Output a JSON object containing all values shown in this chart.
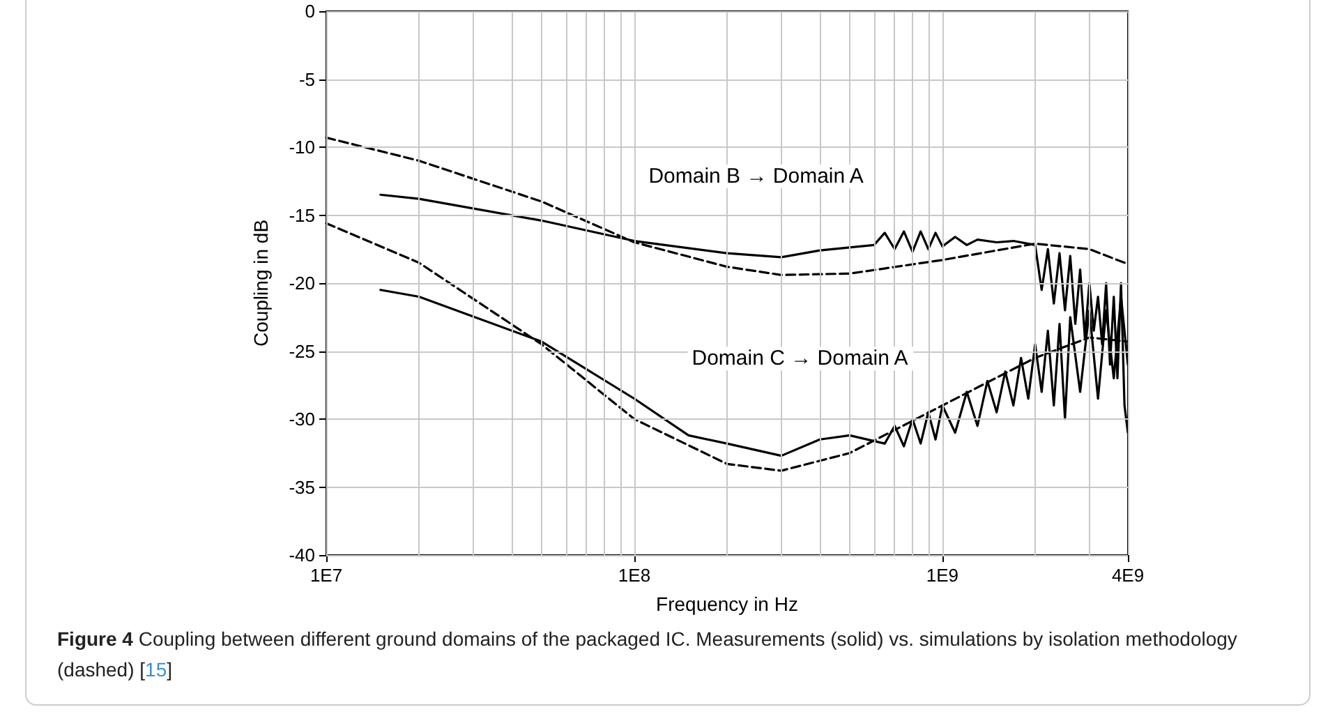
{
  "chart_data": {
    "type": "line",
    "xlabel": "Frequency in Hz",
    "ylabel": "Coupling in dB",
    "log": "x",
    "grid": true,
    "marker": "none",
    "xlim": [
      10000000,
      4000000000
    ],
    "xticks": [
      {
        "value": 10000000,
        "label": "1E7"
      },
      {
        "value": 20000000,
        "label": null
      },
      {
        "value": 30000000,
        "label": null
      },
      {
        "value": 40000000,
        "label": null
      },
      {
        "value": 50000000,
        "label": null
      },
      {
        "value": 60000000,
        "label": null
      },
      {
        "value": 70000000,
        "label": null
      },
      {
        "value": 80000000,
        "label": null
      },
      {
        "value": 90000000,
        "label": null
      },
      {
        "value": 100000000,
        "label": "1E8"
      },
      {
        "value": 200000000,
        "label": null
      },
      {
        "value": 300000000,
        "label": null
      },
      {
        "value": 400000000,
        "label": null
      },
      {
        "value": 500000000,
        "label": null
      },
      {
        "value": 600000000,
        "label": null
      },
      {
        "value": 700000000,
        "label": null
      },
      {
        "value": 800000000,
        "label": null
      },
      {
        "value": 900000000,
        "label": null
      },
      {
        "value": 1000000000,
        "label": "1E9"
      },
      {
        "value": 2000000000,
        "label": null
      },
      {
        "value": 3000000000,
        "label": null
      },
      {
        "value": 4000000000,
        "label": "4E9"
      }
    ],
    "ylim": [
      -40,
      0
    ],
    "yticks": [
      -40,
      -35,
      -30,
      -25,
      -20,
      -15,
      -10,
      -5,
      0
    ],
    "series": [
      {
        "color": "#000000",
        "line_style": "dashed",
        "x": [
          10000000,
          20000000,
          50000000,
          100000000,
          200000000,
          300000000,
          500000000,
          1000000000,
          2000000000,
          3000000000,
          4000000000
        ],
        "values": [
          -9.3,
          -11,
          -14,
          -17,
          -18.8,
          -19.4,
          -19.3,
          -18.3,
          -17.1,
          -17.5,
          -18.6
        ]
      },
      {
        "color": "#000000",
        "line_style": "solid",
        "x": [
          15000000,
          20000000,
          50000000,
          100000000,
          200000000,
          300000000,
          400000000,
          600000000,
          650000000,
          700000000,
          750000000,
          800000000,
          850000000,
          900000000,
          950000000,
          1000000000,
          1100000000,
          1200000000,
          1300000000,
          1500000000,
          1700000000,
          2000000000,
          2100000000,
          2200000000,
          2300000000,
          2400000000,
          2500000000,
          2600000000,
          2700000000,
          2800000000,
          2900000000,
          3000000000,
          3100000000,
          3200000000,
          3300000000,
          3400000000,
          3500000000,
          3600000000,
          3700000000,
          3800000000,
          3900000000,
          4000000000
        ],
        "values": [
          -13.5,
          -13.8,
          -15.4,
          -16.9,
          -17.8,
          -18.1,
          -17.6,
          -17.2,
          -16.3,
          -17.5,
          -16.2,
          -17.7,
          -16.2,
          -17.5,
          -16.3,
          -17.3,
          -16.6,
          -17.2,
          -16.8,
          -17,
          -16.9,
          -17.2,
          -20.5,
          -17.5,
          -21.5,
          -17.8,
          -22,
          -18,
          -23,
          -19,
          -24,
          -20,
          -23.5,
          -21,
          -24.5,
          -20,
          -26,
          -21,
          -27,
          -20,
          -29,
          -31
        ]
      },
      {
        "color": "#000000",
        "line_style": "dashed",
        "x": [
          10000000,
          20000000,
          50000000,
          100000000,
          200000000,
          300000000,
          500000000,
          1000000000,
          2000000000,
          3000000000,
          4000000000
        ],
        "values": [
          -15.6,
          -18.5,
          -24.5,
          -30,
          -33.3,
          -33.8,
          -32.5,
          -29,
          -25.5,
          -24,
          -24.3
        ]
      },
      {
        "color": "#000000",
        "line_style": "solid",
        "x": [
          15000000,
          20000000,
          50000000,
          100000000,
          150000000,
          200000000,
          300000000,
          400000000,
          500000000,
          650000000,
          700000000,
          750000000,
          800000000,
          850000000,
          900000000,
          950000000,
          1000000000,
          1100000000,
          1200000000,
          1300000000,
          1400000000,
          1500000000,
          1600000000,
          1700000000,
          1800000000,
          1900000000,
          2000000000,
          2100000000,
          2200000000,
          2300000000,
          2400000000,
          2500000000,
          2600000000,
          2800000000,
          3000000000,
          3200000000,
          3400000000,
          3600000000,
          3800000000,
          4000000000
        ],
        "values": [
          -20.5,
          -21,
          -24.3,
          -28.5,
          -31.2,
          -31.8,
          -32.7,
          -31.5,
          -31.2,
          -31.8,
          -30.5,
          -32,
          -30,
          -31.8,
          -29.5,
          -31.5,
          -29,
          -31,
          -28,
          -30.5,
          -27.2,
          -29.5,
          -26.5,
          -29,
          -25.5,
          -28.5,
          -24.5,
          -28,
          -23.5,
          -29,
          -23,
          -30,
          -22.5,
          -28,
          -22,
          -28.5,
          -22,
          -27,
          -21,
          -26
        ]
      }
    ],
    "annotations": [
      "Domain B → Domain A",
      "Domain C → Domain A",
      "Figure 4  Coupling between different ground domains of the packaged IC. Measurements (solid) vs. simulations by isolation methodology (dashed) [15]"
    ]
  }
}
